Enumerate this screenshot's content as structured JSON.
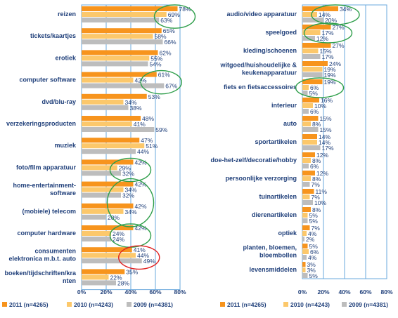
{
  "colors": {
    "s2011": "#f7941d",
    "s2010": "#fcc86b",
    "s2009": "#bdbdbd",
    "axis": "#6aa8dc",
    "text": "#1f3f7a",
    "green_ellipse": "#2e9e4a",
    "red_ellipse": "#e02020"
  },
  "chart_data": [
    {
      "type": "bar",
      "orientation": "horizontal",
      "categories": [
        "reizen",
        "tickets/kaartjes",
        "erotiek",
        "computer software",
        "dvd/blu-ray",
        "verzekeringsproducten",
        "muziek",
        "foto/film apparatuur",
        "home-entertainment-software",
        "(mobiele) telecom",
        "computer hardware",
        "consumenten elektronica m.b.t. auto",
        "boeken/tijdschriften/kranten"
      ],
      "category_lines": [
        [
          "reizen"
        ],
        [
          "tickets/kaartjes"
        ],
        [
          "erotiek"
        ],
        [
          "computer software"
        ],
        [
          "dvd/blu-ray"
        ],
        [
          "verzekeringsproducten"
        ],
        [
          "muziek"
        ],
        [
          "foto/film apparatuur"
        ],
        [
          "home-entertainment-",
          "software"
        ],
        [
          "(mobiele) telecom"
        ],
        [
          "computer hardware"
        ],
        [
          "consumenten",
          "elektronica m.b.t. auto"
        ],
        [
          "boeken/tijdschriften/kra",
          "nten"
        ]
      ],
      "series": [
        {
          "name": "2011 (n=4265)",
          "color_key": "s2011",
          "values": [
            78,
            65,
            62,
            61,
            53,
            48,
            47,
            42,
            42,
            42,
            42,
            41,
            35
          ]
        },
        {
          "name": "2010 (n=4243)",
          "color_key": "s2010",
          "values": [
            69,
            58,
            55,
            42,
            34,
            41,
            51,
            29,
            34,
            34,
            24,
            44,
            22
          ]
        },
        {
          "name": "2009 (n=4381)",
          "color_key": "s2009",
          "values": [
            63,
            66,
            54,
            67,
            38,
            59,
            44,
            32,
            32,
            20,
            24,
            49,
            28
          ]
        }
      ],
      "value_labels": [
        [
          "78%",
          "65%",
          "62%",
          "61%",
          "53%",
          "48%",
          "47%",
          "42%",
          "42%",
          "42%",
          "42%",
          "41%",
          "35%"
        ],
        [
          "69%",
          "58%",
          "55%",
          "42%",
          "34%",
          "41%",
          "51%",
          "29%",
          "34%",
          "34%",
          "24%",
          "44%",
          "22%"
        ],
        [
          "63%",
          "66%",
          "54%",
          "67%",
          "38%",
          "59%",
          "44%",
          "32%",
          "32%",
          "20%",
          "24%",
          "49%",
          "28%"
        ]
      ],
      "xlim": [
        0,
        80
      ],
      "x_ticks": [
        "0%",
        "20%",
        "40%",
        "60%",
        "80%"
      ],
      "grid": "vertical",
      "legend_position": "bottom",
      "highlights": [
        {
          "category_index": 0,
          "color": "green"
        },
        {
          "category_index": 3,
          "color": "green"
        },
        {
          "category_index": 7,
          "color": "green"
        },
        {
          "category_index": 8,
          "color": "green",
          "span": 2
        },
        {
          "category_index": 10,
          "color": "green"
        },
        {
          "category_index": 11,
          "color": "red"
        }
      ]
    },
    {
      "type": "bar",
      "orientation": "horizontal",
      "categories": [
        "audio/video apparatuur",
        "speelgoed",
        "kleding/schoenen",
        "witgoed/huishoudelijke & keukenapparatuur",
        "fiets en fietsaccessoires",
        "interieur",
        "auto",
        "sportartikelen",
        "doe-het-zelf/decoratie/hobby",
        "persoonlijke verzorging",
        "tuinartikelen",
        "dierenartikelen",
        "optiek",
        "planten, bloemen, bloembollen",
        "levensmiddelen"
      ],
      "category_lines": [
        [
          "audio/video apparatuur"
        ],
        [
          "speelgoed"
        ],
        [
          "kleding/schoenen"
        ],
        [
          "witgoed/huishoudelijke &",
          "keukenapparatuur"
        ],
        [
          "fiets en fietsaccessoires"
        ],
        [
          "interieur"
        ],
        [
          "auto"
        ],
        [
          "sportartikelen"
        ],
        [
          "doe-het-zelf/decoratie/hobby"
        ],
        [
          "persoonlijke verzorging"
        ],
        [
          "tuinartikelen"
        ],
        [
          "dierenartikelen"
        ],
        [
          "optiek"
        ],
        [
          "planten, bloemen,",
          "bloembollen"
        ],
        [
          "levensmiddelen"
        ]
      ],
      "series": [
        {
          "name": "2011 (n=4265)",
          "color_key": "s2011",
          "values": [
            34,
            27,
            27,
            24,
            19,
            16,
            15,
            14,
            12,
            12,
            11,
            8,
            7,
            5,
            3
          ]
        },
        {
          "name": "2010 (n=4243)",
          "color_key": "s2010",
          "values": [
            14,
            17,
            15,
            19,
            6,
            10,
            8,
            14,
            8,
            8,
            7,
            5,
            4,
            6,
            3
          ]
        },
        {
          "name": "2009 (n=4381)",
          "color_key": "s2009",
          "values": [
            20,
            12,
            17,
            19,
            5,
            6,
            15,
            17,
            6,
            7,
            10,
            5,
            2,
            4,
            5
          ]
        }
      ],
      "value_labels": [
        [
          "34%",
          "27%",
          "27%",
          "24%",
          "19%",
          "16%",
          "15%",
          "14%",
          "12%",
          "12%",
          "11%",
          "8%",
          "7%",
          "5%",
          "3%"
        ],
        [
          "14%",
          "17%",
          "15%",
          "19%",
          "6%",
          "10%",
          "8%",
          "14%",
          "8%",
          "8%",
          "7%",
          "5%",
          "4%",
          "6%",
          "3%"
        ],
        [
          "20%",
          "12%",
          "17%",
          "19%",
          "5%",
          "6%",
          "15%",
          "17%",
          "6%",
          "7%",
          "10%",
          "5%",
          "2%",
          "4%",
          "5%"
        ]
      ],
      "xlim": [
        0,
        80
      ],
      "x_ticks": [
        "0%",
        "20%",
        "40%",
        "60%",
        "80%"
      ],
      "grid": "vertical",
      "legend_position": "bottom",
      "highlights": [
        {
          "category_index": 0,
          "color": "green"
        },
        {
          "category_index": 1,
          "color": "green"
        },
        {
          "category_index": 4,
          "color": "green"
        }
      ]
    }
  ]
}
